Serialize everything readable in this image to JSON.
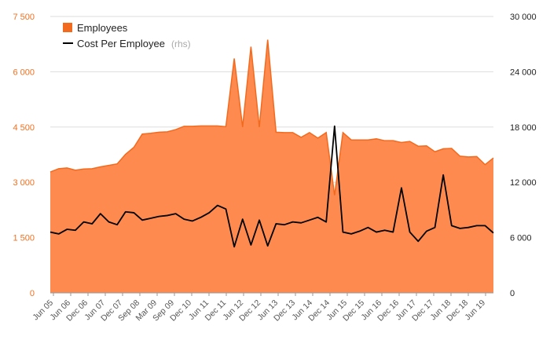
{
  "chart_data": {
    "type": "area",
    "title": "",
    "xlabel": "",
    "ylabel": "",
    "x_tick_labels": [
      "Jun 05",
      "Jun 06",
      "Dec 06",
      "Jun 07",
      "Dec 07",
      "Sep 08",
      "Mar 09",
      "Sep 09",
      "Dec 10",
      "Jun 11",
      "Dec 11",
      "Jun 12",
      "Dec 12",
      "Jun 13",
      "Dec 13",
      "Jun 14",
      "Dec 14",
      "Jun 15",
      "Dec 15",
      "Jun 16",
      "Dec 16",
      "Jun 17",
      "Dec 17",
      "Jun 18",
      "Dec 18",
      "Jun 19"
    ],
    "y_left": {
      "ylim": [
        0,
        7500
      ],
      "ticks": [
        0,
        1500,
        3000,
        4500,
        6000,
        7500
      ],
      "tick_labels": [
        "0",
        "1 500",
        "3 000",
        "4 500",
        "6 000",
        "7 500"
      ],
      "color": "#f07020"
    },
    "y_right": {
      "ylim": [
        0,
        30000
      ],
      "ticks": [
        0,
        6000,
        12000,
        18000,
        24000,
        30000
      ],
      "tick_labels": [
        "0",
        "6 000",
        "12 000",
        "18 000",
        "24 000",
        "30 000"
      ]
    },
    "legend": {
      "position": "top-left",
      "entries": [
        {
          "label": "Employees",
          "note": ""
        },
        {
          "label": "Cost Per Employee",
          "note": "(rhs)"
        }
      ]
    },
    "series": [
      {
        "name": "Employees",
        "type": "area",
        "axis": "left",
        "color": "#ff8a50",
        "edge_color": "#f26a1d",
        "values": [
          3280,
          3370,
          3390,
          3330,
          3360,
          3370,
          3420,
          3460,
          3500,
          3760,
          3950,
          4310,
          4330,
          4360,
          4370,
          4430,
          4520,
          4520,
          4530,
          4530,
          4530,
          4510,
          6360,
          4500,
          6680,
          4500,
          6870,
          4360,
          4350,
          4350,
          4220,
          4350,
          4200,
          4350,
          2650,
          4350,
          4150,
          4150,
          4150,
          4180,
          4130,
          4130,
          4080,
          4110,
          3980,
          3990,
          3830,
          3910,
          3920,
          3710,
          3690,
          3700,
          3480,
          3660
        ]
      },
      {
        "name": "Cost Per Employee",
        "type": "line",
        "axis": "right",
        "color": "#000000",
        "values": [
          6600,
          6400,
          6900,
          6800,
          7700,
          7500,
          8600,
          7700,
          7400,
          8800,
          8700,
          7900,
          8100,
          8300,
          8400,
          8600,
          8000,
          7800,
          8200,
          8700,
          9500,
          9100,
          5000,
          8000,
          5200,
          7900,
          5100,
          7500,
          7400,
          7700,
          7600,
          7900,
          8200,
          7700,
          18100,
          6600,
          6400,
          6700,
          7100,
          6600,
          6800,
          6600,
          11400,
          6600,
          5600,
          6700,
          7100,
          12800,
          7300,
          7000,
          7100,
          7300,
          7300,
          6500
        ]
      }
    ]
  }
}
